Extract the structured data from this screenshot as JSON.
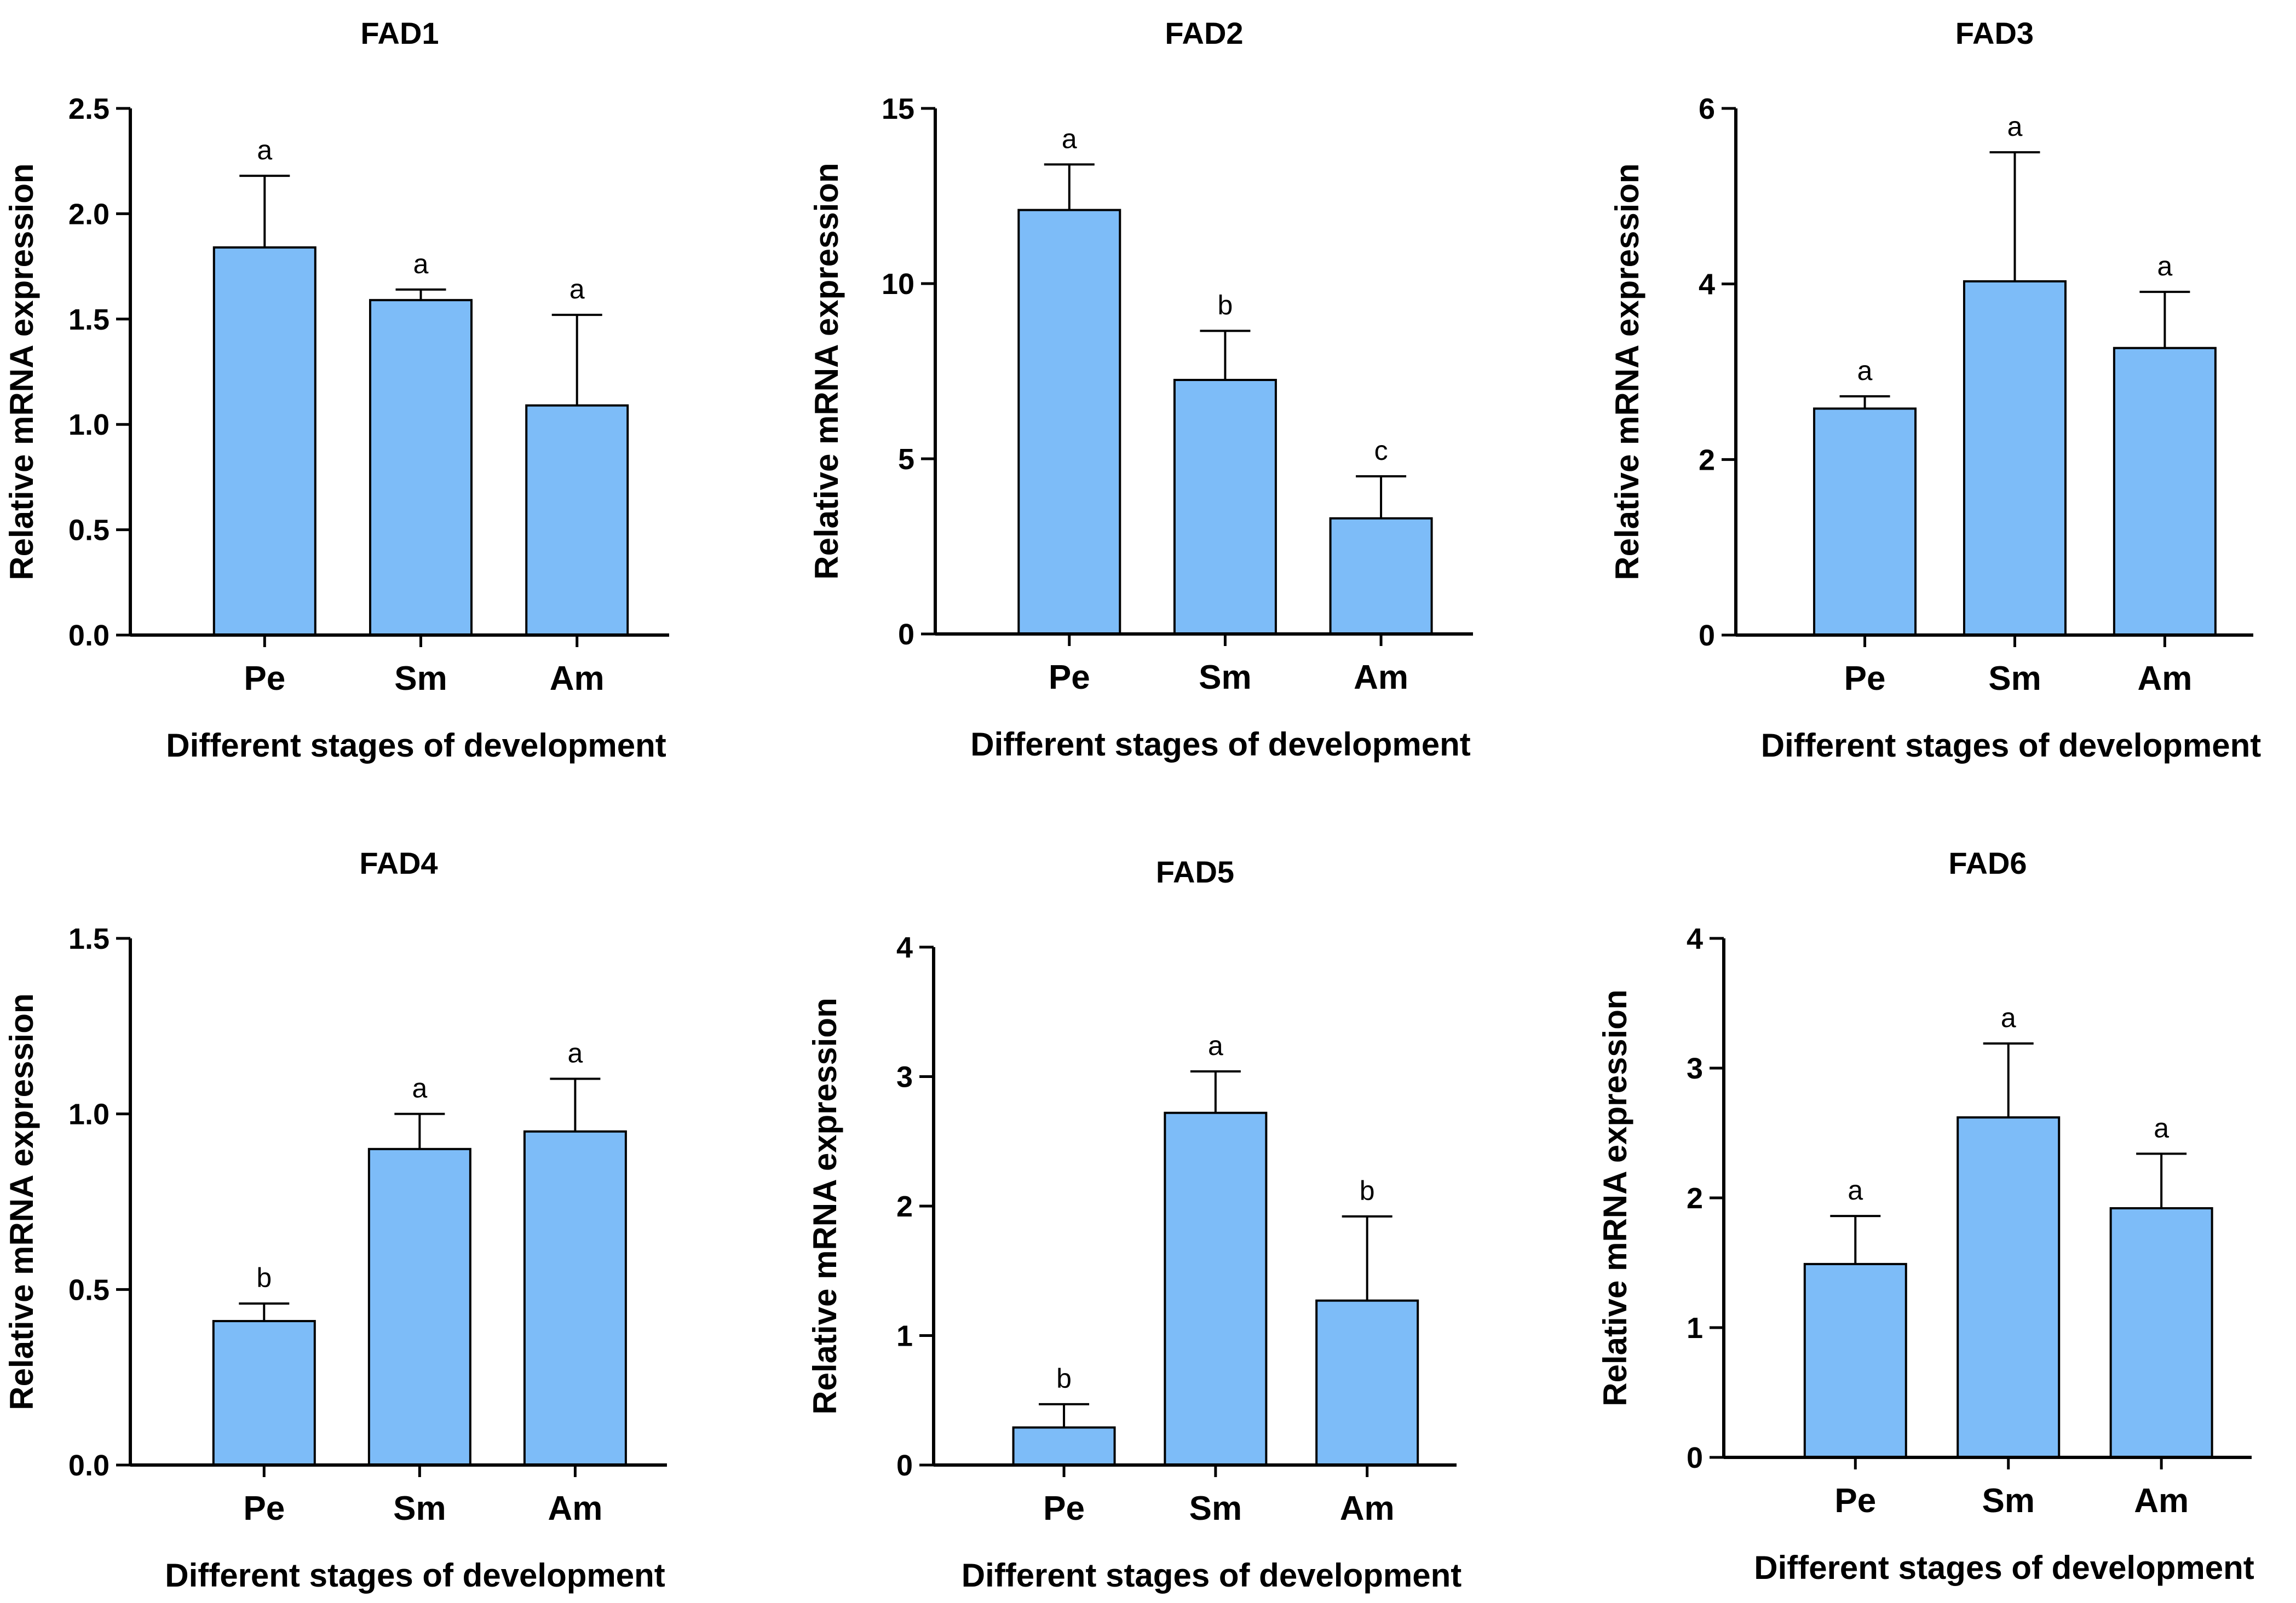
{
  "figure": {
    "bar_color": "#7dbcf8",
    "bar_edge_color": "#000000",
    "axis_color": "#000000"
  },
  "chart_data": [
    {
      "type": "bar",
      "title": "FAD1",
      "xlabel": "Different stages of development",
      "ylabel": "Relative mRNA expression",
      "ylim": [
        0,
        2.5
      ],
      "yticks": [
        "0.0",
        "0.5",
        "1.0",
        "1.5",
        "2.0",
        "2.5"
      ],
      "categories": [
        "Pe",
        "Sm",
        "Am"
      ],
      "values": [
        1.84,
        1.59,
        1.09
      ],
      "errors": [
        0.34,
        0.05,
        0.43
      ],
      "significance": [
        "a",
        "a",
        "a"
      ]
    },
    {
      "type": "bar",
      "title": "FAD2",
      "xlabel": "Different stages of development",
      "ylabel": "Relative mRNA expression",
      "ylim": [
        0,
        15
      ],
      "yticks": [
        "0",
        "5",
        "10",
        "15"
      ],
      "categories": [
        "Pe",
        "Sm",
        "Am"
      ],
      "values": [
        12.1,
        7.25,
        3.3
      ],
      "errors": [
        1.3,
        1.4,
        1.2
      ],
      "significance": [
        "a",
        "b",
        "c"
      ]
    },
    {
      "type": "bar",
      "title": "FAD3",
      "xlabel": "Different stages of development",
      "ylabel": "Relative mRNA expression",
      "ylim": [
        0,
        6
      ],
      "yticks": [
        "0",
        "2",
        "4",
        "6"
      ],
      "categories": [
        "Pe",
        "Sm",
        "Am"
      ],
      "values": [
        2.58,
        4.03,
        3.27
      ],
      "errors": [
        0.14,
        1.47,
        0.64
      ],
      "significance": [
        "a",
        "a",
        "a"
      ]
    },
    {
      "type": "bar",
      "title": "FAD4",
      "xlabel": "Different stages of development",
      "ylabel": "Relative mRNA expression",
      "ylim": [
        0,
        1.5
      ],
      "yticks": [
        "0.0",
        "0.5",
        "1.0",
        "1.5"
      ],
      "categories": [
        "Pe",
        "Sm",
        "Am"
      ],
      "values": [
        0.41,
        0.9,
        0.95
      ],
      "errors": [
        0.05,
        0.1,
        0.15
      ],
      "significance": [
        "b",
        "a",
        "a"
      ]
    },
    {
      "type": "bar",
      "title": "FAD5",
      "xlabel": "Different stages of development",
      "ylabel": "Relative mRNA expression",
      "ylim": [
        0,
        4
      ],
      "yticks": [
        "0",
        "1",
        "2",
        "3",
        "4"
      ],
      "categories": [
        "Pe",
        "Sm",
        "Am"
      ],
      "values": [
        0.29,
        2.72,
        1.27
      ],
      "errors": [
        0.18,
        0.32,
        0.65
      ],
      "significance": [
        "b",
        "a",
        "b"
      ]
    },
    {
      "type": "bar",
      "title": "FAD6",
      "xlabel": "Different stages of development",
      "ylabel": "Relative mRNA expression",
      "ylim": [
        0,
        4
      ],
      "yticks": [
        "0",
        "1",
        "2",
        "3",
        "4"
      ],
      "categories": [
        "Pe",
        "Sm",
        "Am"
      ],
      "values": [
        1.49,
        2.62,
        1.92
      ],
      "errors": [
        0.37,
        0.57,
        0.42
      ],
      "significance": [
        "a",
        "a",
        "a"
      ]
    }
  ]
}
